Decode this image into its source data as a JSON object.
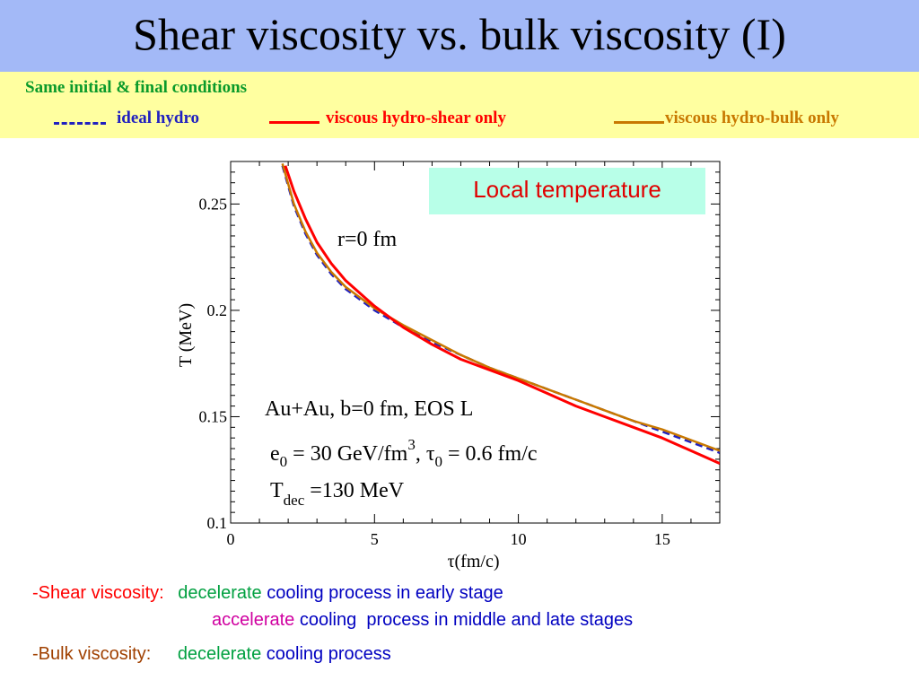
{
  "title": "Shear viscosity vs. bulk viscosity (I)",
  "conditions": "Same initial & final conditions",
  "legend": [
    {
      "label": "ideal hydro",
      "color": "#2020c0",
      "style": "dashed"
    },
    {
      "label": "viscous hydro-shear only",
      "color": "#ff0000",
      "style": "solid"
    },
    {
      "label": "viscous hydro-bulk only",
      "color": "#c87800",
      "style": "solid"
    }
  ],
  "chart_data": {
    "type": "line",
    "xlabel": "τ(fm/c)",
    "ylabel": "T (MeV)",
    "xlim": [
      0,
      17
    ],
    "ylim": [
      0.1,
      0.27
    ],
    "xticks": [
      "0",
      "5",
      "10",
      "15"
    ],
    "yticks": [
      "0.1",
      "0.15",
      "0.2",
      "0.25"
    ],
    "series": [
      {
        "name": "ideal hydro",
        "color": "#2020c0",
        "dash": "8,5",
        "x": [
          1.8,
          2.2,
          2.6,
          3.0,
          3.5,
          4.0,
          5.0,
          6.0,
          7.0,
          8.0,
          9.0,
          10.0,
          11.0,
          12.0,
          13.0,
          14.0,
          15.0,
          16.0,
          17.0
        ],
        "y": [
          0.268,
          0.249,
          0.236,
          0.226,
          0.217,
          0.21,
          0.2,
          0.192,
          0.185,
          0.179,
          0.173,
          0.168,
          0.163,
          0.158,
          0.153,
          0.148,
          0.143,
          0.138,
          0.133
        ]
      },
      {
        "name": "viscous hydro-bulk only",
        "color": "#c87800",
        "dash": "",
        "x": [
          1.8,
          2.2,
          2.6,
          3.0,
          3.5,
          4.0,
          5.0,
          6.0,
          7.0,
          8.0,
          9.0,
          10.0,
          11.0,
          12.0,
          13.0,
          14.0,
          15.0,
          16.0,
          17.0
        ],
        "y": [
          0.269,
          0.25,
          0.237,
          0.227,
          0.218,
          0.211,
          0.201,
          0.193,
          0.186,
          0.179,
          0.173,
          0.168,
          0.163,
          0.158,
          0.153,
          0.148,
          0.144,
          0.139,
          0.134
        ]
      },
      {
        "name": "viscous hydro-shear only",
        "color": "#ff0000",
        "dash": "",
        "x": [
          1.9,
          2.2,
          2.6,
          3.0,
          3.5,
          4.0,
          5.0,
          6.0,
          7.0,
          8.0,
          9.0,
          10.0,
          11.0,
          12.0,
          13.0,
          14.0,
          15.0,
          16.0,
          17.0
        ],
        "y": [
          0.268,
          0.256,
          0.243,
          0.232,
          0.222,
          0.214,
          0.202,
          0.192,
          0.184,
          0.177,
          0.172,
          0.167,
          0.161,
          0.155,
          0.15,
          0.145,
          0.14,
          0.134,
          0.128
        ]
      }
    ],
    "annotations": {
      "r_label": "r=0 fm",
      "line1": "Au+Au, b=0 fm, EOS L",
      "line2_e": "e",
      "line2_e_sub": "0",
      "line2_mid": " = 30 GeV/fm",
      "line2_sup": "3",
      "line2_tau": ", τ",
      "line2_tau_sub": "0",
      "line2_end": " = 0.6 fm/c",
      "line3_T": "T",
      "line3_sub": "dec",
      "line3_end": " =130 MeV"
    },
    "inset_label": "Local temperature"
  },
  "bottom": {
    "shear_label": "-Shear viscosity:",
    "shear_word1": "decelerate",
    "shear_rest1": "cooling process in early stage",
    "shear_word2": "accelerate",
    "shear_rest2": "cooling  process in middle and late stages",
    "bulk_label": "-Bulk viscosity:",
    "bulk_word": "decelerate",
    "bulk_rest": "cooling process",
    "colors": {
      "red": "#ff0000",
      "green": "#00a040",
      "blue": "#0000c0",
      "magenta": "#d000a0",
      "brown": "#a04000"
    }
  }
}
